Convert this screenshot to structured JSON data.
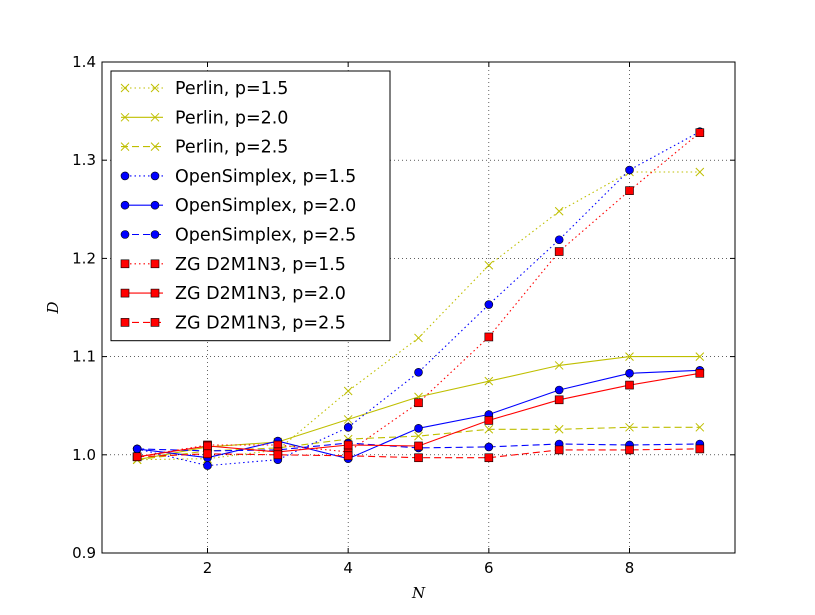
{
  "chart_data": {
    "type": "line",
    "title": "",
    "xlabel": "N",
    "ylabel": "D",
    "xlim": [
      0.5,
      9.5
    ],
    "ylim": [
      0.9,
      1.4
    ],
    "xticks": [
      2,
      4,
      6,
      8
    ],
    "yticks": [
      0.9,
      1.0,
      1.1,
      1.2,
      1.3,
      1.4
    ],
    "grid": true,
    "legend_position": "top-left",
    "x": [
      1,
      2,
      3,
      4,
      5,
      6,
      7,
      8,
      9
    ],
    "series": [
      {
        "name": "Perlin, p=1.5",
        "color": "#bfbf00",
        "linestyle": "dotted",
        "marker": "x",
        "values": [
          0.995,
          0.996,
          1.005,
          1.065,
          1.119,
          1.193,
          1.248,
          1.288,
          1.288
        ]
      },
      {
        "name": "Perlin, p=2.0",
        "color": "#bfbf00",
        "linestyle": "solid",
        "marker": "x",
        "values": [
          0.995,
          1.008,
          1.013,
          1.036,
          1.059,
          1.075,
          1.091,
          1.1,
          1.1
        ]
      },
      {
        "name": "Perlin, p=2.5",
        "color": "#bfbf00",
        "linestyle": "dashed",
        "marker": "x",
        "values": [
          0.995,
          1.004,
          1.007,
          1.016,
          1.019,
          1.026,
          1.026,
          1.028,
          1.028
        ]
      },
      {
        "name": "OpenSimplex, p=1.5",
        "color": "#0000ff",
        "linestyle": "dotted",
        "marker": "o",
        "values": [
          1.006,
          0.989,
          0.995,
          1.028,
          1.084,
          1.153,
          1.219,
          1.29,
          1.329
        ]
      },
      {
        "name": "OpenSimplex, p=2.0",
        "color": "#0000ff",
        "linestyle": "solid",
        "marker": "o",
        "values": [
          1.006,
          0.997,
          1.014,
          0.996,
          1.027,
          1.041,
          1.066,
          1.083,
          1.086
        ]
      },
      {
        "name": "OpenSimplex, p=2.5",
        "color": "#0000ff",
        "linestyle": "dashed",
        "marker": "o",
        "values": [
          1.006,
          1.004,
          1.005,
          1.012,
          1.007,
          1.008,
          1.011,
          1.01,
          1.011
        ]
      },
      {
        "name": "ZG D2M1N3, p=1.5",
        "color": "#ff0000",
        "linestyle": "dotted",
        "marker": "s",
        "values": [
          0.998,
          1.01,
          1.01,
          1.003,
          1.053,
          1.12,
          1.207,
          1.269,
          1.328
        ]
      },
      {
        "name": "ZG D2M1N3, p=2.0",
        "color": "#ff0000",
        "linestyle": "solid",
        "marker": "s",
        "values": [
          0.998,
          1.009,
          1.003,
          1.01,
          1.009,
          1.035,
          1.056,
          1.071,
          1.083
        ]
      },
      {
        "name": "ZG D2M1N3, p=2.5",
        "color": "#ff0000",
        "linestyle": "dashed",
        "marker": "s",
        "values": [
          0.998,
          1.001,
          1.0,
          0.999,
          0.997,
          0.997,
          1.005,
          1.005,
          1.006
        ]
      }
    ]
  }
}
